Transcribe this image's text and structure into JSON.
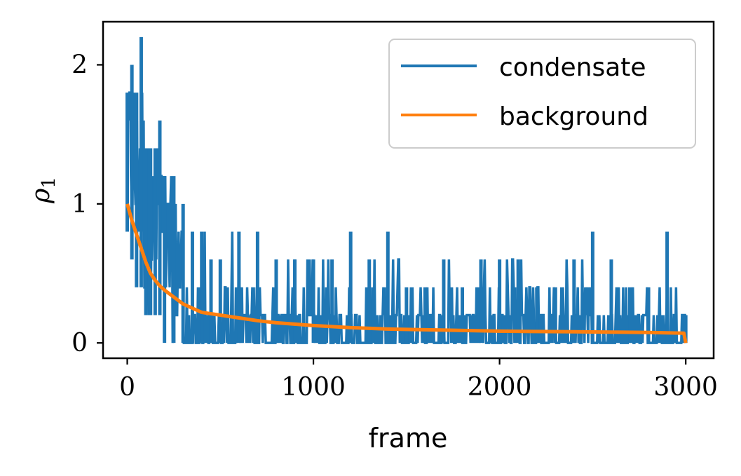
{
  "chart_data": {
    "type": "line",
    "xlabel": "frame",
    "ylabel_symbol": "ρ",
    "ylabel_subscript": "1",
    "xlim": [
      -130,
      3150
    ],
    "ylim": [
      -0.11,
      2.31
    ],
    "xticks": [
      0,
      1000,
      2000,
      3000
    ],
    "xtick_labels": [
      "0",
      "1000",
      "2000",
      "3000"
    ],
    "yticks": [
      0,
      1,
      2
    ],
    "ytick_labels": [
      "0",
      "1",
      "2"
    ],
    "grid": false,
    "legend_position": "top-right",
    "series": [
      {
        "name": "condensate",
        "color": "#1f77b4",
        "envelope": {
          "x": [
            0,
            25,
            50,
            75,
            100,
            125,
            150,
            175,
            200,
            250,
            300,
            350,
            400,
            450,
            500,
            600,
            700,
            800,
            900,
            1000,
            1100,
            1200,
            1300,
            1400,
            1500,
            1600,
            1700,
            1800,
            1900,
            2000,
            2100,
            2200,
            2300,
            2400,
            2500,
            2600,
            2700,
            2800,
            2900,
            3000
          ],
          "peak": [
            1.8,
            2.0,
            1.8,
            2.2,
            1.4,
            1.4,
            1.4,
            1.6,
            1.2,
            1.2,
            1.0,
            0.8,
            0.8,
            0.6,
            0.6,
            0.8,
            0.8,
            0.6,
            0.6,
            0.6,
            0.6,
            0.8,
            0.6,
            0.8,
            0.4,
            0.4,
            0.6,
            0.4,
            0.6,
            0.6,
            0.6,
            0.4,
            0.4,
            0.6,
            0.8,
            0.6,
            0.4,
            0.4,
            0.8,
            0.2
          ],
          "floor": [
            0.8,
            0.6,
            0.4,
            0.4,
            0.2,
            0.2,
            0.2,
            0.2,
            0.0,
            0.0,
            0.0,
            0.0,
            0.0,
            0.0,
            0.0,
            0.0,
            0.0,
            0.0,
            0.0,
            0.0,
            0.0,
            0.0,
            0.0,
            0.0,
            0.0,
            0.0,
            0.0,
            0.0,
            0.0,
            0.0,
            0.0,
            0.0,
            0.0,
            0.0,
            0.0,
            0.0,
            0.0,
            0.0,
            0.0,
            0.0
          ]
        }
      },
      {
        "name": "background",
        "color": "#ff7f0e",
        "x": [
          0,
          25,
          50,
          75,
          100,
          125,
          150,
          175,
          200,
          250,
          300,
          350,
          400,
          500,
          600,
          700,
          800,
          900,
          1000,
          1200,
          1400,
          1600,
          1800,
          2000,
          2200,
          2400,
          2600,
          2800,
          2990,
          3000
        ],
        "y": [
          1.0,
          0.88,
          0.78,
          0.68,
          0.58,
          0.5,
          0.45,
          0.41,
          0.38,
          0.33,
          0.28,
          0.25,
          0.22,
          0.2,
          0.18,
          0.16,
          0.145,
          0.135,
          0.125,
          0.11,
          0.1,
          0.095,
          0.09,
          0.085,
          0.082,
          0.08,
          0.078,
          0.075,
          0.07,
          0.0
        ]
      }
    ]
  }
}
